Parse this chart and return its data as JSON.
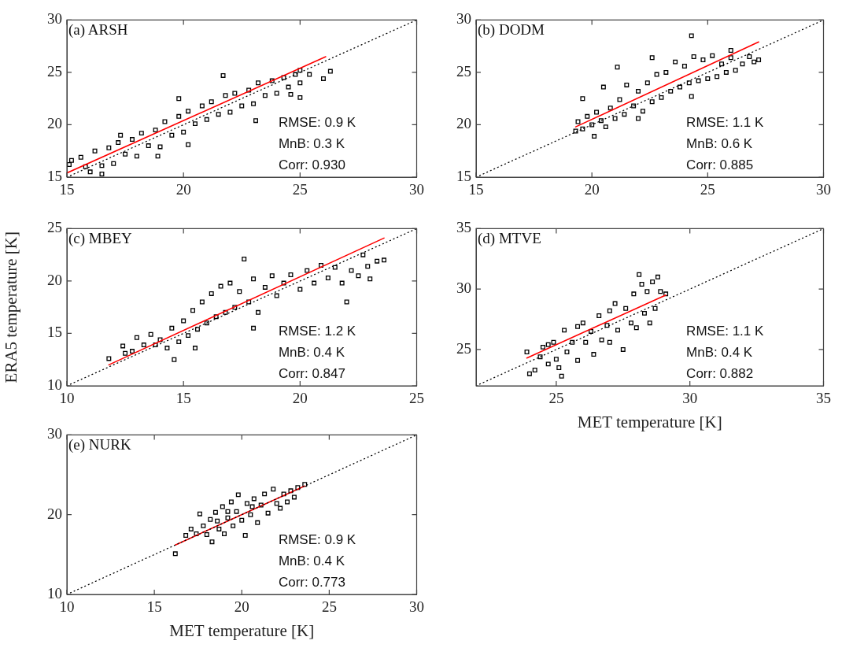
{
  "chart_data": [
    {
      "type": "scatter",
      "title": "(a) ARSH",
      "annotations": [
        "RMSE: 0.9 K",
        "MnB: 0.3 K",
        "Corr: 0.930"
      ],
      "xlim": [
        15,
        30
      ],
      "ylim": [
        15,
        30
      ],
      "xticks": [
        15,
        20,
        25,
        30
      ],
      "yticks": [
        15,
        20,
        25,
        30
      ],
      "series": [
        {
          "type": "scatter",
          "marker": "square",
          "color": "#000000",
          "x": [
            15.1,
            15.2,
            15.6,
            15.8,
            16.0,
            16.2,
            16.5,
            16.5,
            16.8,
            17.0,
            17.2,
            17.3,
            17.5,
            17.8,
            18.0,
            18.2,
            18.5,
            18.8,
            18.9,
            19.0,
            19.2,
            19.5,
            19.8,
            19.8,
            20.0,
            20.2,
            20.2,
            20.5,
            20.8,
            21.0,
            21.2,
            21.5,
            21.7,
            21.8,
            22.0,
            22.2,
            22.5,
            22.8,
            23.1,
            23.0,
            23.2,
            23.5,
            23.8,
            24.0,
            24.3,
            24.5,
            24.6,
            24.8,
            25.0,
            25.0,
            25.0,
            25.4,
            26.0,
            26.3
          ],
          "values": [
            16.2,
            16.6,
            16.9,
            16.0,
            15.5,
            17.5,
            16.1,
            15.3,
            17.8,
            16.3,
            18.3,
            19.0,
            17.2,
            18.6,
            17.0,
            19.2,
            18.0,
            19.5,
            17.0,
            17.9,
            20.3,
            19.0,
            20.8,
            22.5,
            19.3,
            18.1,
            21.3,
            20.1,
            21.8,
            20.5,
            22.2,
            21.0,
            24.7,
            22.8,
            21.2,
            23.0,
            21.8,
            23.3,
            20.4,
            22.0,
            24.0,
            22.8,
            24.2,
            23.0,
            24.5,
            23.6,
            22.9,
            24.8,
            24.0,
            25.2,
            22.6,
            24.8,
            24.4,
            25.1
          ]
        },
        {
          "type": "line",
          "marker": "none",
          "line_style": "dotted",
          "color": "#000000",
          "x": [
            15,
            30
          ],
          "values": [
            15,
            30
          ]
        },
        {
          "type": "line",
          "marker": "none",
          "line_style": "solid",
          "color": "#ff0000",
          "x": [
            15,
            26.1
          ],
          "values": [
            15.4,
            26.5
          ]
        }
      ]
    },
    {
      "type": "scatter",
      "title": "(b) DODM",
      "annotations": [
        "RMSE: 1.1 K",
        "MnB: 0.6 K",
        "Corr: 0.885"
      ],
      "xlim": [
        15,
        30
      ],
      "ylim": [
        15,
        30
      ],
      "xticks": [
        15,
        20,
        25,
        30
      ],
      "yticks": [
        15,
        20,
        25,
        30
      ],
      "series": [
        {
          "type": "scatter",
          "marker": "square",
          "color": "#000000",
          "x": [
            19.3,
            19.4,
            19.6,
            19.8,
            20.0,
            20.2,
            20.4,
            20.6,
            20.8,
            21.0,
            21.2,
            21.4,
            21.5,
            21.8,
            22.0,
            22.2,
            22.4,
            22.6,
            22.8,
            23.0,
            23.2,
            23.4,
            23.6,
            23.8,
            24.0,
            24.2,
            24.4,
            24.6,
            24.8,
            25.0,
            25.2,
            25.4,
            25.6,
            25.8,
            26.0,
            26.2,
            26.5,
            26.8,
            27.0,
            27.2,
            24.3,
            21.1,
            20.5,
            19.6,
            20.1,
            24.3,
            22.6,
            26.0,
            22.0
          ],
          "values": [
            19.4,
            20.3,
            19.6,
            20.8,
            20.0,
            21.2,
            20.4,
            19.8,
            21.6,
            20.6,
            22.4,
            21.0,
            23.8,
            21.8,
            23.2,
            21.3,
            24.0,
            22.2,
            24.8,
            22.6,
            25.0,
            23.2,
            26.0,
            23.6,
            25.6,
            24.0,
            26.5,
            24.2,
            26.2,
            24.4,
            26.6,
            24.6,
            25.8,
            25.0,
            26.4,
            25.2,
            25.8,
            26.5,
            26.0,
            26.2,
            28.5,
            25.5,
            23.6,
            22.5,
            18.9,
            22.7,
            26.4,
            27.1,
            20.6
          ]
        },
        {
          "type": "line",
          "marker": "none",
          "line_style": "dotted",
          "color": "#000000",
          "x": [
            15,
            30
          ],
          "values": [
            15,
            30
          ]
        },
        {
          "type": "line",
          "marker": "none",
          "line_style": "solid",
          "color": "#ff0000",
          "x": [
            19.3,
            27.2
          ],
          "values": [
            19.8,
            27.9
          ]
        }
      ]
    },
    {
      "type": "scatter",
      "title": "(c) MBEY",
      "ylabel": "ERA5 temperature [K]",
      "annotations": [
        "RMSE: 1.2 K",
        "MnB: 0.4 K",
        "Corr: 0.847"
      ],
      "xlim": [
        10,
        25
      ],
      "ylim": [
        10,
        25
      ],
      "xticks": [
        10,
        15,
        20,
        25
      ],
      "yticks": [
        10,
        15,
        20,
        25
      ],
      "series": [
        {
          "type": "scatter",
          "marker": "square",
          "color": "#000000",
          "x": [
            11.8,
            12.5,
            12.4,
            12.8,
            13.0,
            13.3,
            13.6,
            13.8,
            14.0,
            14.3,
            14.5,
            14.6,
            14.8,
            15.0,
            15.2,
            15.4,
            15.6,
            15.8,
            16.0,
            16.2,
            16.4,
            16.6,
            16.8,
            17.0,
            17.2,
            17.4,
            17.6,
            17.8,
            18.0,
            18.2,
            18.5,
            18.8,
            19.0,
            19.3,
            19.6,
            20.0,
            20.3,
            20.6,
            20.9,
            21.2,
            21.5,
            21.8,
            22.2,
            22.5,
            22.7,
            22.9,
            23.0,
            23.3,
            23.6,
            22.0,
            18.0,
            15.5
          ],
          "values": [
            12.6,
            13.1,
            13.8,
            13.3,
            14.6,
            13.9,
            14.9,
            13.9,
            14.4,
            13.6,
            15.5,
            12.5,
            14.2,
            16.2,
            14.8,
            17.2,
            15.4,
            18.0,
            16.0,
            18.8,
            16.6,
            19.5,
            17.0,
            19.8,
            17.5,
            19.0,
            22.1,
            18.0,
            20.2,
            17.0,
            19.4,
            20.5,
            18.6,
            19.8,
            20.6,
            19.2,
            21.0,
            19.8,
            21.5,
            20.3,
            21.3,
            19.8,
            21.0,
            20.5,
            22.5,
            21.4,
            20.2,
            21.9,
            22.0,
            18.0,
            15.5,
            13.6
          ]
        },
        {
          "type": "line",
          "marker": "none",
          "line_style": "dotted",
          "color": "#000000",
          "x": [
            10,
            25
          ],
          "values": [
            10,
            25
          ]
        },
        {
          "type": "line",
          "marker": "none",
          "line_style": "solid",
          "color": "#ff0000",
          "x": [
            11.8,
            23.6
          ],
          "values": [
            12.0,
            24.1
          ]
        }
      ]
    },
    {
      "type": "scatter",
      "title": "(d) MTVE",
      "xlabel": "MET temperature [K]",
      "annotations": [
        "RMSE: 1.1 K",
        "MnB: 0.4 K",
        "Corr: 0.882"
      ],
      "xlim": [
        22,
        35
      ],
      "ylim": [
        22,
        35
      ],
      "xticks": [
        25,
        30,
        35
      ],
      "yticks": [
        25,
        30,
        35
      ],
      "series": [
        {
          "type": "scatter",
          "marker": "square",
          "color": "#000000",
          "x": [
            23.9,
            24.0,
            24.2,
            24.4,
            24.5,
            24.7,
            24.9,
            25.0,
            25.1,
            25.2,
            25.3,
            25.4,
            25.6,
            25.8,
            26.0,
            26.1,
            26.3,
            26.4,
            26.6,
            26.7,
            26.9,
            27.0,
            27.2,
            27.3,
            27.5,
            27.6,
            27.8,
            27.9,
            28.0,
            28.1,
            28.2,
            28.3,
            28.4,
            28.5,
            28.6,
            28.7,
            28.8,
            28.9,
            29.1,
            27.0,
            25.8,
            24.7
          ],
          "values": [
            24.8,
            23.0,
            23.3,
            24.4,
            25.2,
            23.8,
            25.6,
            24.2,
            23.5,
            22.8,
            26.6,
            24.8,
            25.6,
            24.1,
            27.2,
            25.6,
            26.5,
            24.6,
            27.8,
            25.8,
            27.0,
            25.6,
            28.8,
            26.6,
            25.0,
            28.4,
            27.2,
            29.6,
            26.8,
            31.2,
            30.4,
            28.0,
            29.8,
            27.2,
            30.6,
            28.4,
            31.0,
            29.8,
            29.6,
            28.2,
            26.9,
            25.4
          ]
        },
        {
          "type": "line",
          "marker": "none",
          "line_style": "dotted",
          "color": "#000000",
          "x": [
            22,
            35
          ],
          "values": [
            22,
            35
          ]
        },
        {
          "type": "line",
          "marker": "none",
          "line_style": "solid",
          "color": "#ff0000",
          "x": [
            23.9,
            29.1
          ],
          "values": [
            24.3,
            29.5
          ]
        }
      ]
    },
    {
      "type": "scatter",
      "title": "(e) NURK",
      "xlabel": "MET temperature [K]",
      "annotations": [
        "RMSE: 0.9 K",
        "MnB: 0.4 K",
        "Corr: 0.773"
      ],
      "xlim": [
        10,
        30
      ],
      "ylim": [
        10,
        30
      ],
      "xticks": [
        10,
        15,
        20,
        25,
        30
      ],
      "yticks": [
        10,
        20,
        30
      ],
      "series": [
        {
          "type": "scatter",
          "marker": "square",
          "color": "#000000",
          "x": [
            16.2,
            16.8,
            17.1,
            17.4,
            17.6,
            17.8,
            18.0,
            18.2,
            18.3,
            18.5,
            18.7,
            18.9,
            19.0,
            19.2,
            19.4,
            19.5,
            19.7,
            19.8,
            20.0,
            20.2,
            20.3,
            20.5,
            20.7,
            20.9,
            21.1,
            21.3,
            21.5,
            21.8,
            22.0,
            22.2,
            22.4,
            22.6,
            22.8,
            23.0,
            23.2,
            23.6,
            19.2,
            20.6,
            18.6
          ],
          "values": [
            15.1,
            17.4,
            18.2,
            17.6,
            20.1,
            18.6,
            17.5,
            19.4,
            16.6,
            20.3,
            18.2,
            21.0,
            17.6,
            19.6,
            21.6,
            18.6,
            20.4,
            22.5,
            19.3,
            17.4,
            21.4,
            20.0,
            22.0,
            19.0,
            21.2,
            22.6,
            20.2,
            23.2,
            21.4,
            20.8,
            22.6,
            21.6,
            23.0,
            22.2,
            23.4,
            23.8,
            20.4,
            21.0,
            19.2
          ]
        },
        {
          "type": "line",
          "marker": "none",
          "line_style": "dotted",
          "color": "#000000",
          "x": [
            10,
            30
          ],
          "values": [
            10,
            30
          ]
        },
        {
          "type": "line",
          "marker": "none",
          "line_style": "solid",
          "color": "#ff0000",
          "x": [
            16.2,
            23.6
          ],
          "values": [
            16.2,
            23.6
          ]
        }
      ]
    }
  ]
}
